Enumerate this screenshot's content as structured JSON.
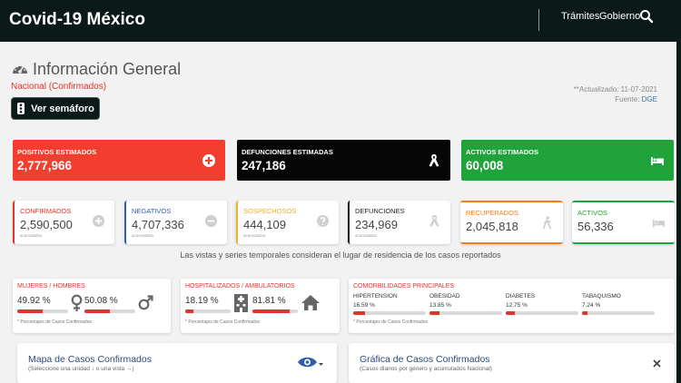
{
  "header": {
    "brand": "Covid-19 México",
    "links": [
      "Trámites",
      "Gobierno"
    ],
    "search_icon": "search-icon"
  },
  "page": {
    "title": "Información General",
    "subtitle": "Nacional (Confirmados)",
    "updated": "**Actualizado: 11-07-2021",
    "source_label": "Fuente:",
    "source_link": "DGE",
    "semaforo_button": "Ver semáforo"
  },
  "estimates": [
    {
      "label": "POSITIVOS ESTIMADOS",
      "value": "2,777,966",
      "color": "#f23e2e",
      "icon": "plus-circle-icon"
    },
    {
      "label": "DEFUNCIONES ESTIMADAS",
      "value": "247,186",
      "color": "#050505",
      "icon": "ribbon-icon"
    },
    {
      "label": "ACTIVOS ESTIMADOS",
      "value": "60,008",
      "color": "#1fa33a",
      "icon": "bed-icon"
    }
  ],
  "stats": [
    {
      "label": "CONFIRMADOS",
      "value": "2,590,500",
      "sub": "acumulados",
      "color": "#e4332b",
      "icon": "plus-circle-icon"
    },
    {
      "label": "NEGATIVOS",
      "value": "4,707,336",
      "sub": "acumulados",
      "color": "#2f5fa8",
      "icon": "minus-circle-icon"
    },
    {
      "label": "SOSPECHOSOS",
      "value": "444,109",
      "sub": "acumulados",
      "color": "#e8b220",
      "icon": "question-circle-icon"
    },
    {
      "label": "DEFUNCIONES",
      "value": "234,969",
      "sub": "acumulados",
      "color": "#222222",
      "icon": "ribbon-icon"
    },
    {
      "label": "RECUPERADOS",
      "value": "2,045,818",
      "sub": "",
      "color": "#f07d1e",
      "icon": "walking-icon"
    },
    {
      "label": "ACTIVOS",
      "value": "56,336",
      "sub": "",
      "color": "#1fa33a",
      "icon": "bed-icon"
    }
  ],
  "note": "Las vistas y series temporales consideran el lugar de residencia de los casos reportados",
  "panels": {
    "gender": {
      "title": "MUJERES / HOMBRES",
      "women_pct": "49.92 %",
      "women_value": 49.92,
      "men_pct": "50.08 %",
      "men_value": 50.08,
      "footnote": "* Porcentajes de Casos Confirmados"
    },
    "hospital": {
      "title": "HOSPITALIZADOS / AMBULATORIOS",
      "hosp_pct": "18.19 %",
      "hosp_value": 18.19,
      "amb_pct": "81.81 %",
      "amb_value": 81.81,
      "footnote": "* Porcentajes de Casos Confirmados"
    },
    "comorbid": {
      "title": "COMORBILIDADES PRINCIPALES",
      "items": [
        {
          "label": "HIPERTENSION",
          "pct": "16.59 %",
          "value": 16.59
        },
        {
          "label": "OBESIDAD",
          "pct": "13.85 %",
          "value": 13.85
        },
        {
          "label": "DIABETES",
          "pct": "12.75 %",
          "value": 12.75
        },
        {
          "label": "TABAQUISMO",
          "pct": "7.24 %",
          "value": 7.24
        }
      ],
      "footnote": "* Porcentajes de Casos Confirmados"
    }
  },
  "cards": {
    "map": {
      "title": "Mapa de Casos Confirmados",
      "subtitle": "(Seleccione una unidad ↓ o una vista →)"
    },
    "graph": {
      "title": "Gráfica de Casos Confirmados",
      "subtitle": "(Casos diarios por género y acumulados Nacional)"
    }
  }
}
